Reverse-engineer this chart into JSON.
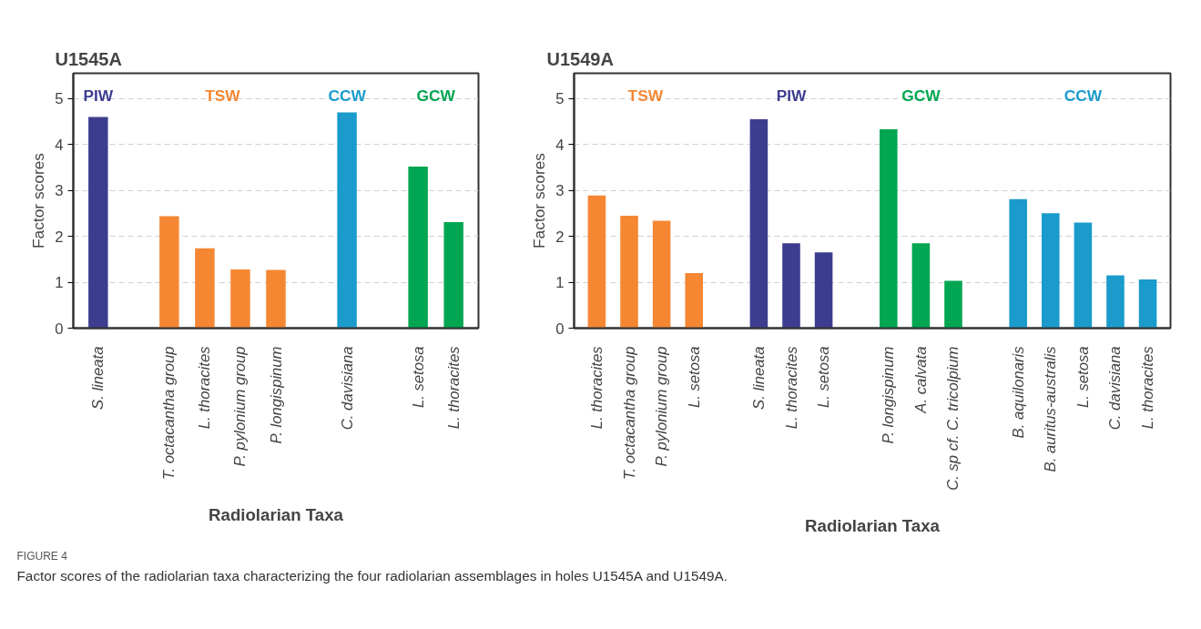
{
  "chart_data": [
    {
      "type": "bar",
      "title": "U1545A",
      "xlabel": "Radiolarian Taxa",
      "ylabel": "Factor scores",
      "categories": [
        "S. lineata",
        null,
        "T. octacantha group",
        "L. thoracites",
        "P. pylonium group",
        "P. longispinum",
        null,
        "C. davisiana",
        null,
        "L. setosa",
        "L. thoracites"
      ],
      "series": [
        {
          "name": "PIW",
          "color": "#3d3d8f",
          "values": [
            4.6,
            null,
            null,
            null,
            null,
            null,
            null,
            null,
            null,
            null,
            null
          ]
        },
        {
          "name": "TSW",
          "color": "#f58733",
          "values": [
            null,
            null,
            2.44,
            1.74,
            1.28,
            1.27,
            null,
            null,
            null,
            null,
            null
          ]
        },
        {
          "name": "CCW",
          "color": "#1a9bcc",
          "values": [
            null,
            null,
            null,
            null,
            null,
            null,
            null,
            4.7,
            null,
            null,
            null
          ]
        },
        {
          "name": "GCW",
          "color": "#00a651",
          "values": [
            null,
            null,
            null,
            null,
            null,
            null,
            null,
            null,
            null,
            3.52,
            2.31
          ]
        }
      ],
      "ylim": [
        0,
        5.55
      ],
      "yticks": [
        0,
        1,
        2,
        3,
        4,
        5
      ],
      "grid": "y",
      "legend": false,
      "annotations": [
        "FIGURE 4",
        "Factor scores of the radiolarian taxa characterizing the four radiolarian assemblages in holes U1545A and U1549A."
      ]
    },
    {
      "type": "bar",
      "title": "U1549A",
      "xlabel": "Radiolarian Taxa",
      "ylabel": "Factor scores",
      "categories": [
        "L. thoracites",
        "T. octacantha group",
        "P. pylonium group",
        "L. setosa",
        null,
        "S. lineata",
        "L. thoracites",
        "L. setosa",
        null,
        "P. longispinum",
        "A. calvata",
        "C. sp cf. C. tricolpium",
        null,
        "B. aquilonaris",
        "B. auritus-australis",
        "L. setosa",
        "C. davisiana",
        "L. thoracites"
      ],
      "series": [
        {
          "name": "TSW",
          "color": "#f58733",
          "values": [
            2.89,
            2.45,
            2.34,
            1.2,
            null,
            null,
            null,
            null,
            null,
            null,
            null,
            null,
            null,
            null,
            null,
            null,
            null,
            null
          ]
        },
        {
          "name": "PIW",
          "color": "#3d3d8f",
          "values": [
            null,
            null,
            null,
            null,
            null,
            4.55,
            1.85,
            1.65,
            null,
            null,
            null,
            null,
            null,
            null,
            null,
            null,
            null,
            null
          ]
        },
        {
          "name": "GCW",
          "color": "#00a651",
          "values": [
            null,
            null,
            null,
            null,
            null,
            null,
            null,
            null,
            null,
            4.33,
            1.85,
            1.03,
            null,
            null,
            null,
            null,
            null,
            null
          ]
        },
        {
          "name": "CCW",
          "color": "#1a9bcc",
          "values": [
            null,
            null,
            null,
            null,
            null,
            null,
            null,
            null,
            null,
            null,
            null,
            null,
            null,
            2.81,
            2.5,
            2.3,
            1.15,
            1.06
          ]
        }
      ],
      "ylim": [
        0,
        5.55
      ],
      "yticks": [
        0,
        1,
        2,
        3,
        4,
        5
      ],
      "grid": "y",
      "legend": false
    }
  ]
}
